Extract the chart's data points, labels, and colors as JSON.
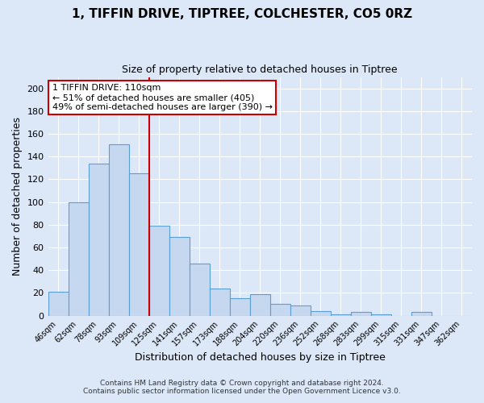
{
  "title": "1, TIFFIN DRIVE, TIPTREE, COLCHESTER, CO5 0RZ",
  "subtitle": "Size of property relative to detached houses in Tiptree",
  "xlabel": "Distribution of detached houses by size in Tiptree",
  "ylabel": "Number of detached properties",
  "bar_labels": [
    "46sqm",
    "62sqm",
    "78sqm",
    "93sqm",
    "109sqm",
    "125sqm",
    "141sqm",
    "157sqm",
    "173sqm",
    "188sqm",
    "204sqm",
    "220sqm",
    "236sqm",
    "252sqm",
    "268sqm",
    "283sqm",
    "299sqm",
    "315sqm",
    "331sqm",
    "347sqm",
    "362sqm"
  ],
  "bar_values": [
    21,
    100,
    134,
    151,
    125,
    79,
    69,
    46,
    24,
    15,
    19,
    10,
    9,
    4,
    1,
    3,
    1,
    0,
    3,
    0,
    0
  ],
  "bar_color": "#c5d8f0",
  "bar_edge_color": "#5a9fd4",
  "highlight_bar_index": 4,
  "highlight_line_color": "#cc0000",
  "ylim": [
    0,
    210
  ],
  "yticks": [
    0,
    20,
    40,
    60,
    80,
    100,
    120,
    140,
    160,
    180,
    200
  ],
  "annotation_title": "1 TIFFIN DRIVE: 110sqm",
  "annotation_line1": "← 51% of detached houses are smaller (405)",
  "annotation_line2": "49% of semi-detached houses are larger (390) →",
  "annotation_box_color": "#ffffff",
  "annotation_box_edge": "#cc0000",
  "footer_line1": "Contains HM Land Registry data © Crown copyright and database right 2024.",
  "footer_line2": "Contains public sector information licensed under the Open Government Licence v3.0.",
  "background_color": "#dce8f8",
  "plot_bg_color": "#dce8f8",
  "grid_color": "#ffffff",
  "title_fontsize": 11,
  "subtitle_fontsize": 9
}
